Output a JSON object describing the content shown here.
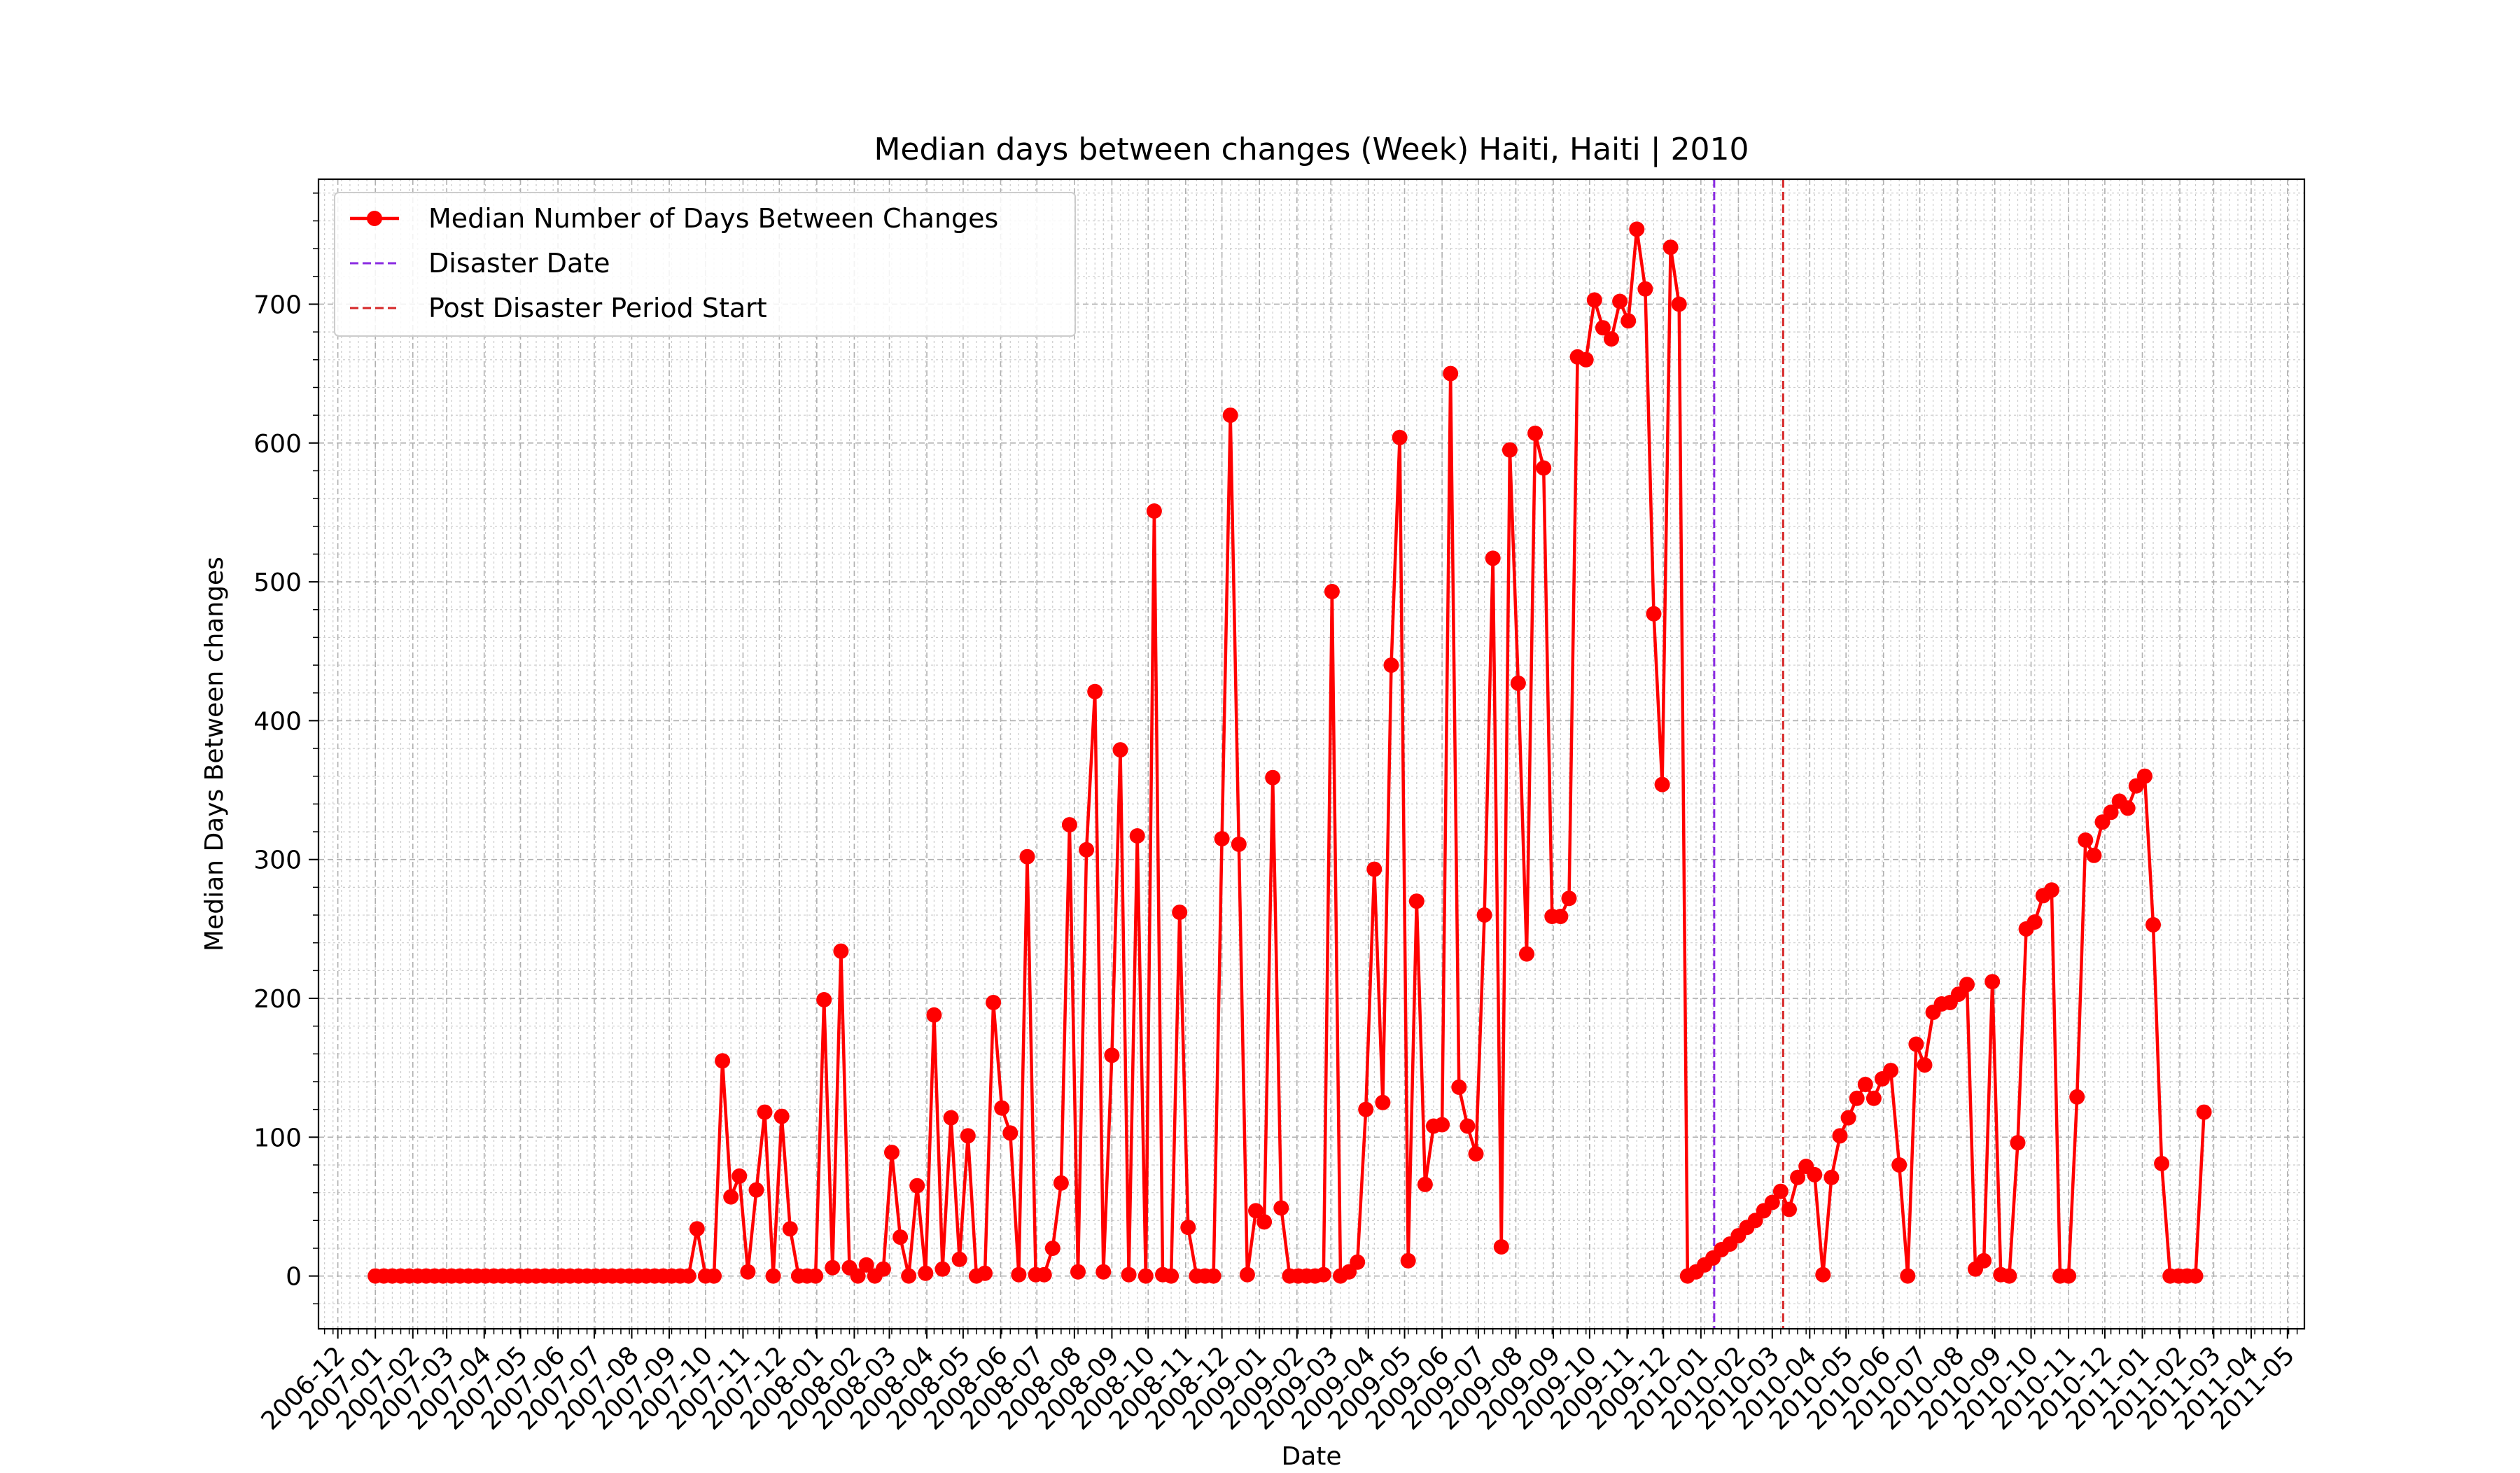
{
  "chart_data": {
    "type": "line",
    "title": "Median days between changes (Week) Haiti, Haiti | 2010",
    "xlabel": "Date",
    "ylabel": "Median Days Between changes",
    "xlim": [
      "2006-11-15",
      "2011-05-15"
    ],
    "ylim": [
      -38,
      790
    ],
    "y_ticks": [
      0,
      100,
      200,
      300,
      400,
      500,
      600,
      700
    ],
    "x_ticks": [
      "2006-12",
      "2007-01",
      "2007-02",
      "2007-03",
      "2007-04",
      "2007-05",
      "2007-06",
      "2007-07",
      "2007-08",
      "2007-09",
      "2007-10",
      "2007-11",
      "2007-12",
      "2008-01",
      "2008-02",
      "2008-03",
      "2008-04",
      "2008-05",
      "2008-06",
      "2008-07",
      "2008-08",
      "2008-09",
      "2008-10",
      "2008-11",
      "2008-12",
      "2009-01",
      "2009-02",
      "2009-03",
      "2009-04",
      "2009-05",
      "2009-06",
      "2009-07",
      "2009-08",
      "2009-09",
      "2009-10",
      "2009-11",
      "2009-12",
      "2010-01",
      "2010-02",
      "2010-03",
      "2010-04",
      "2010-05",
      "2010-06",
      "2010-07",
      "2010-08",
      "2010-09",
      "2010-10",
      "2010-11",
      "2010-12",
      "2011-01",
      "2011-02",
      "2011-03",
      "2011-04",
      "2011-05"
    ],
    "grid": true,
    "legend_position": "top-left",
    "series": [
      {
        "name": "Median Number of Days Between Changes",
        "color": "#ff0000",
        "start_date": "2007-01-01",
        "interval_days": 7,
        "values": [
          0,
          0,
          0,
          0,
          0,
          0,
          0,
          0,
          0,
          0,
          0,
          0,
          0,
          0,
          0,
          0,
          0,
          0,
          0,
          0,
          0,
          0,
          0,
          0,
          0,
          0,
          0,
          0,
          0,
          0,
          0,
          0,
          0,
          0,
          0,
          0,
          0,
          0,
          34,
          0,
          0,
          155,
          57,
          72,
          3,
          62,
          118,
          0,
          115,
          34,
          0,
          0,
          0,
          199,
          6,
          234,
          6,
          0,
          8,
          0,
          5,
          89,
          28,
          0,
          65,
          2,
          188,
          5,
          114,
          12,
          101,
          0,
          2,
          197,
          121,
          103,
          1,
          302,
          1,
          1,
          20,
          67,
          325,
          3,
          307,
          421,
          3,
          159,
          379,
          1,
          317,
          0,
          551,
          1,
          0,
          262,
          35,
          0,
          0,
          0,
          315,
          620,
          311,
          1,
          47,
          39,
          359,
          49,
          0,
          0,
          0,
          0,
          1,
          493,
          0,
          3,
          10,
          120,
          293,
          125,
          440,
          604,
          11,
          270,
          66,
          108,
          109,
          650,
          136,
          108,
          88,
          260,
          517,
          21,
          595,
          427,
          232,
          607,
          582,
          259,
          259,
          272,
          662,
          660,
          703,
          683,
          675,
          702,
          688,
          754,
          711,
          477,
          354,
          741,
          700,
          0,
          3,
          8,
          13,
          19,
          23,
          29,
          35,
          40,
          47,
          53,
          61,
          48,
          71,
          79,
          73,
          1,
          71,
          101,
          114,
          128,
          138,
          128,
          142,
          148,
          80,
          0,
          167,
          152,
          190,
          196,
          197,
          203,
          210,
          5,
          11,
          212,
          1,
          0,
          96,
          250,
          255,
          274,
          278,
          0,
          0,
          129,
          314,
          303,
          327,
          334,
          342,
          337,
          353,
          360,
          253,
          81,
          0,
          0,
          0,
          0,
          118
        ]
      }
    ],
    "vertical_lines": [
      {
        "name": "Disaster Date",
        "date": "2010-01-12",
        "color": "#8a2be2"
      },
      {
        "name": "Post Disaster Period Start",
        "date": "2010-03-10",
        "color": "#d62728"
      }
    ]
  }
}
